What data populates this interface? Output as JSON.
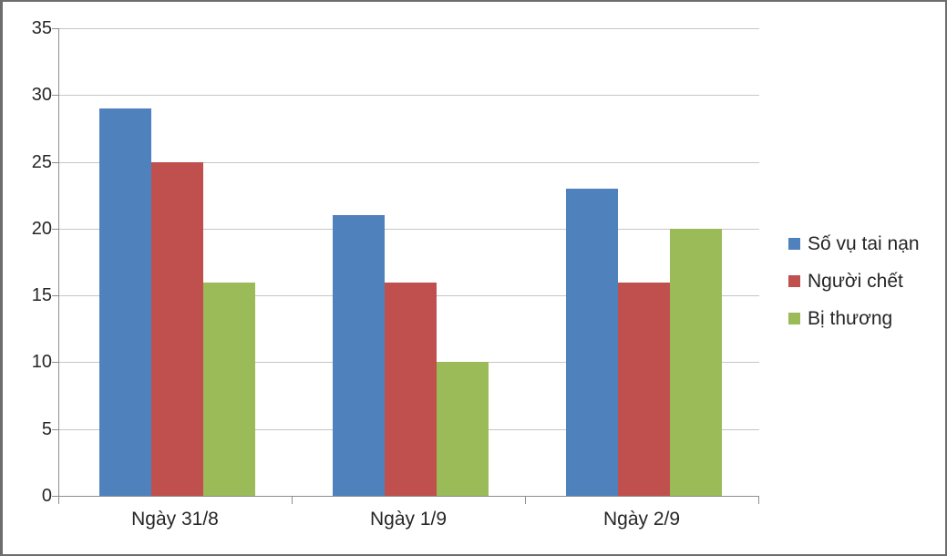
{
  "chart_data": {
    "type": "bar",
    "title": "",
    "xlabel": "",
    "ylabel": "",
    "categories": [
      "Ngày 31/8",
      "Ngày 1/9",
      "Ngày 2/9"
    ],
    "series": [
      {
        "name": "Số vụ tai nạn",
        "color": "#4F81BD",
        "values": [
          29,
          21,
          23
        ]
      },
      {
        "name": "Người chết",
        "color": "#C0504D",
        "values": [
          25,
          16,
          16
        ]
      },
      {
        "name": "Bị thương",
        "color": "#9BBB59",
        "values": [
          16,
          10,
          20
        ]
      }
    ],
    "ylim": [
      0,
      35
    ],
    "ytick_step": 5,
    "ytick_labels": [
      "0",
      "5",
      "10",
      "15",
      "20",
      "25",
      "30",
      "35"
    ],
    "grid": true,
    "legend_position": "right"
  },
  "colors": {
    "background": "#ffffff",
    "frame_border": "#6d6d6d",
    "gridline": "#c6c6c6",
    "axis": "#8e8e8e",
    "text": "#262626"
  }
}
